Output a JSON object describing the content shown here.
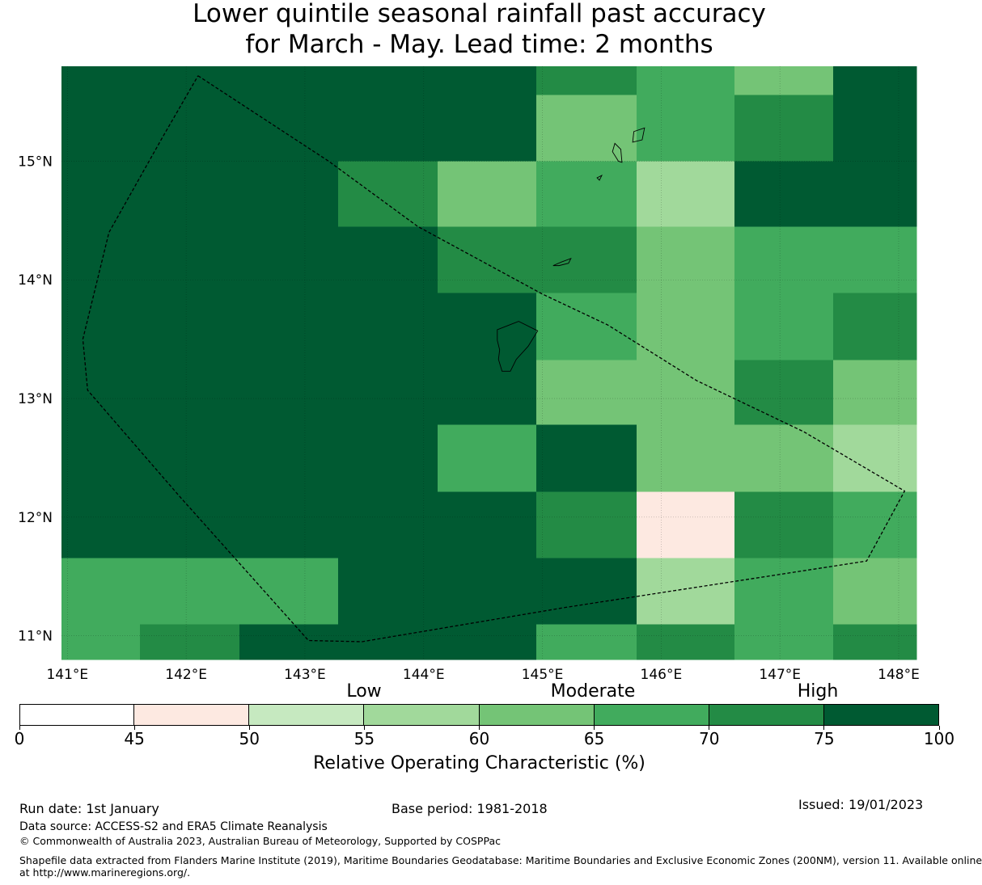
{
  "title": {
    "line1": "Lower quintile seasonal rainfall past accuracy",
    "line2": "for March - May. Lead time: 2 months"
  },
  "map": {
    "lon_range": [
      140.95,
      148.15
    ],
    "lat_range": [
      10.8,
      15.8
    ],
    "x_ticks": [
      "141°E",
      "142°E",
      "143°E",
      "144°E",
      "145°E",
      "146°E",
      "147°E",
      "148°E"
    ],
    "x_tick_values": [
      141,
      142,
      143,
      144,
      145,
      146,
      147,
      148
    ],
    "y_ticks": [
      "11°N",
      "12°N",
      "13°N",
      "14°N",
      "15°N"
    ],
    "y_tick_values": [
      11,
      12,
      13,
      14,
      15
    ],
    "cell_lon_edges": [
      140.95,
      141.61,
      142.45,
      143.28,
      144.12,
      144.95,
      145.79,
      146.62,
      147.45,
      148.15
    ],
    "cell_lat_edges": [
      10.8,
      11.1,
      11.66,
      12.22,
      12.78,
      13.33,
      13.89,
      14.45,
      15.0,
      15.56,
      15.8
    ],
    "roc_class_grid_south_to_north": [
      [
        5,
        6,
        7,
        7,
        7,
        5,
        6,
        5,
        6
      ],
      [
        5,
        5,
        5,
        7,
        7,
        7,
        3,
        5,
        4
      ],
      [
        7,
        7,
        7,
        7,
        7,
        6,
        1,
        6,
        5
      ],
      [
        7,
        7,
        7,
        7,
        5,
        7,
        4,
        4,
        3
      ],
      [
        7,
        7,
        7,
        7,
        7,
        4,
        4,
        6,
        4
      ],
      [
        7,
        7,
        7,
        7,
        7,
        5,
        4,
        5,
        6
      ],
      [
        7,
        7,
        7,
        7,
        6,
        6,
        4,
        5,
        5
      ],
      [
        7,
        7,
        7,
        6,
        4,
        5,
        3,
        7,
        7
      ],
      [
        7,
        7,
        7,
        7,
        7,
        4,
        5,
        6,
        7
      ],
      [
        7,
        7,
        7,
        7,
        7,
        6,
        5,
        4,
        7
      ]
    ],
    "eez_boundary": [
      [
        142.1,
        15.72
      ],
      [
        143.2,
        15.0
      ],
      [
        143.95,
        14.45
      ],
      [
        145.0,
        13.88
      ],
      [
        145.55,
        13.62
      ],
      [
        146.3,
        13.15
      ],
      [
        147.2,
        12.72
      ],
      [
        148.05,
        12.22
      ],
      [
        147.73,
        11.63
      ],
      [
        145.2,
        11.24
      ],
      [
        143.48,
        10.95
      ],
      [
        143.03,
        10.96
      ],
      [
        141.94,
        12.18
      ],
      [
        141.17,
        13.07
      ],
      [
        141.13,
        13.5
      ],
      [
        141.35,
        14.4
      ],
      [
        141.8,
        15.2
      ],
      [
        142.1,
        15.72
      ]
    ],
    "islands": [
      [
        [
          144.62,
          13.58
        ],
        [
          144.8,
          13.65
        ],
        [
          144.96,
          13.57
        ],
        [
          144.88,
          13.44
        ],
        [
          144.78,
          13.33
        ],
        [
          144.73,
          13.23
        ],
        [
          144.66,
          13.23
        ],
        [
          144.63,
          13.33
        ],
        [
          144.64,
          13.41
        ],
        [
          144.62,
          13.49
        ]
      ],
      [
        [
          145.09,
          14.12
        ],
        [
          145.16,
          14.15
        ],
        [
          145.24,
          14.18
        ],
        [
          145.22,
          14.14
        ],
        [
          145.14,
          14.12
        ]
      ],
      [
        [
          145.59,
          15.08
        ],
        [
          145.64,
          15.0
        ],
        [
          145.67,
          14.99
        ],
        [
          145.66,
          15.1
        ],
        [
          145.61,
          15.15
        ]
      ],
      [
        [
          145.46,
          14.86
        ],
        [
          145.5,
          14.88
        ],
        [
          145.48,
          14.84
        ]
      ],
      [
        [
          145.77,
          15.25
        ],
        [
          145.86,
          15.28
        ],
        [
          145.84,
          15.18
        ],
        [
          145.76,
          15.16
        ]
      ]
    ]
  },
  "colorbar": {
    "ticks": [
      "0",
      "45",
      "50",
      "55",
      "60",
      "65",
      "70",
      "75",
      "100"
    ],
    "colors": [
      "#ffffff",
      "#fde9e1",
      "#c6e9c0",
      "#a1d99b",
      "#74c476",
      "#41ab5d",
      "#238b45",
      "#005a32"
    ],
    "categories": [
      "Low",
      "Moderate",
      "High"
    ],
    "label": "Relative Operating Characteristic (%)"
  },
  "footer": {
    "run_date": "Run date: 1st January",
    "base_period": "Base period: 1981-2018",
    "issued": "Issued: 19/01/2023",
    "data_source": "Data source: ACCESS-S2 and ERA5 Climate Reanalysis",
    "copyright": "© Commonwealth of Australia 2023, Australian Bureau of Meteorology, Supported by COSPPac",
    "shapefile_line1": "Shapefile data extracted from Flanders Marine Institute (2019), Maritime Boundaries Geodatabase: Maritime Boundaries and Exclusive Economic Zones (200NM), version 11. Available online",
    "shapefile_line2": "at http://www.marineregions.org/."
  }
}
